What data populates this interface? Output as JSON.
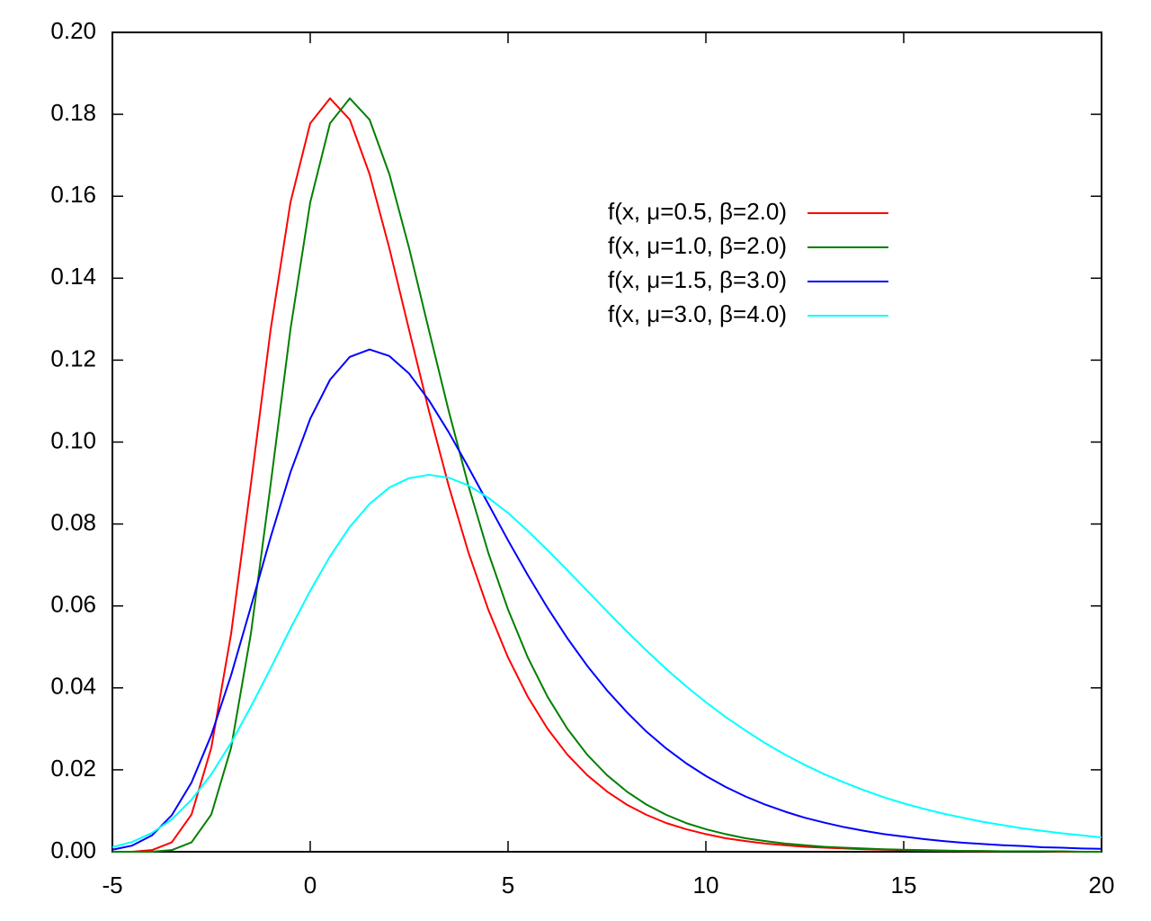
{
  "chart_data": {
    "type": "line",
    "x": [
      -5,
      -4.5,
      -4,
      -3.5,
      -3,
      -2.5,
      -2,
      -1.5,
      -1,
      -0.5,
      0,
      0.5,
      1,
      1.5,
      2,
      2.5,
      3,
      3.5,
      4,
      4.5,
      5,
      5.5,
      6,
      6.5,
      7,
      7.5,
      8,
      8.5,
      9,
      9.5,
      10,
      10.5,
      11,
      11.5,
      12,
      12.5,
      13,
      13.5,
      14,
      14.5,
      15,
      15.5,
      16,
      16.5,
      17,
      17.5,
      18,
      18.5,
      19,
      19.5,
      20
    ],
    "series": [
      {
        "name": "f(x, μ=0.5, β=2.0)",
        "color": "#ff0000",
        "values": [
          0.0,
          0.0,
          0.0004,
          0.0023,
          0.0091,
          0.0254,
          0.0532,
          0.0897,
          0.1275,
          0.1585,
          0.1778,
          0.1839,
          0.1787,
          0.1654,
          0.1473,
          0.1273,
          0.1076,
          0.0893,
          0.073,
          0.0591,
          0.0474,
          0.0378,
          0.03,
          0.0237,
          0.0187,
          0.0147,
          0.0115,
          0.009,
          0.007,
          0.0055,
          0.0043,
          0.0033,
          0.0026,
          0.002,
          0.0016,
          0.0012,
          0.001,
          0.0008,
          0.0006,
          0.0005,
          0.0004,
          0.0003,
          0.0002,
          0.0002,
          0.0001,
          0.0001,
          0.0001,
          0.0001,
          0.0,
          0.0,
          0.0
        ]
      },
      {
        "name": "f(x, μ=1.0, β=2.0)",
        "color": "#008000",
        "values": [
          0.0,
          0.0,
          0.0,
          0.0004,
          0.0023,
          0.0091,
          0.0254,
          0.0532,
          0.0897,
          0.1275,
          0.1585,
          0.1778,
          0.1839,
          0.1787,
          0.1654,
          0.1473,
          0.1273,
          0.1076,
          0.0893,
          0.073,
          0.0591,
          0.0474,
          0.0378,
          0.03,
          0.0237,
          0.0187,
          0.0147,
          0.0115,
          0.009,
          0.007,
          0.0055,
          0.0043,
          0.0033,
          0.0026,
          0.002,
          0.0016,
          0.0012,
          0.001,
          0.0008,
          0.0006,
          0.0005,
          0.0004,
          0.0003,
          0.0002,
          0.0002,
          0.0001,
          0.0001,
          0.0001,
          0.0001,
          0.0,
          0.0
        ]
      },
      {
        "name": "f(x, μ=1.5, β=3.0)",
        "color": "#0000ff",
        "values": [
          0.0005,
          0.0015,
          0.004,
          0.0089,
          0.0169,
          0.0285,
          0.0431,
          0.0598,
          0.0768,
          0.0926,
          0.1057,
          0.1152,
          0.1208,
          0.1226,
          0.121,
          0.1167,
          0.1102,
          0.1024,
          0.0938,
          0.0849,
          0.076,
          0.0675,
          0.0595,
          0.0521,
          0.0454,
          0.0394,
          0.0341,
          0.0293,
          0.0252,
          0.0216,
          0.0185,
          0.0158,
          0.0135,
          0.0115,
          0.0098,
          0.0083,
          0.0071,
          0.006,
          0.0051,
          0.0043,
          0.0037,
          0.0031,
          0.0026,
          0.0022,
          0.0019,
          0.0016,
          0.0014,
          0.0011,
          0.001,
          0.0008,
          0.0007
        ]
      },
      {
        "name": "f(x, μ=3.0, β=4.0)",
        "color": "#00ffff",
        "values": [
          0.0011,
          0.0024,
          0.0046,
          0.0079,
          0.0127,
          0.0189,
          0.0266,
          0.0354,
          0.0448,
          0.0545,
          0.0637,
          0.0721,
          0.0793,
          0.0849,
          0.0889,
          0.0912,
          0.092,
          0.0913,
          0.0894,
          0.0864,
          0.0827,
          0.0783,
          0.0736,
          0.0687,
          0.0637,
          0.0587,
          0.0538,
          0.0491,
          0.0446,
          0.0404,
          0.0365,
          0.0329,
          0.0296,
          0.0265,
          0.0237,
          0.0212,
          0.0189,
          0.0169,
          0.015,
          0.0133,
          0.0118,
          0.0105,
          0.0093,
          0.0083,
          0.0073,
          0.0065,
          0.0057,
          0.0051,
          0.0045,
          0.004,
          0.0035
        ]
      }
    ],
    "xlim": [
      -5,
      20
    ],
    "xticks": [
      -5,
      0,
      5,
      10,
      15,
      20
    ],
    "ylim": [
      0,
      0.2
    ],
    "yticks": [
      {
        "value": 0,
        "label": "0.00"
      },
      0.02,
      0.04,
      0.06,
      0.08,
      {
        "value": 0.1,
        "label": "0.10"
      },
      0.12,
      0.14,
      0.16,
      0.18,
      {
        "value": 0.2,
        "label": "0.20"
      }
    ],
    "grid": false,
    "legend": "top-right"
  }
}
